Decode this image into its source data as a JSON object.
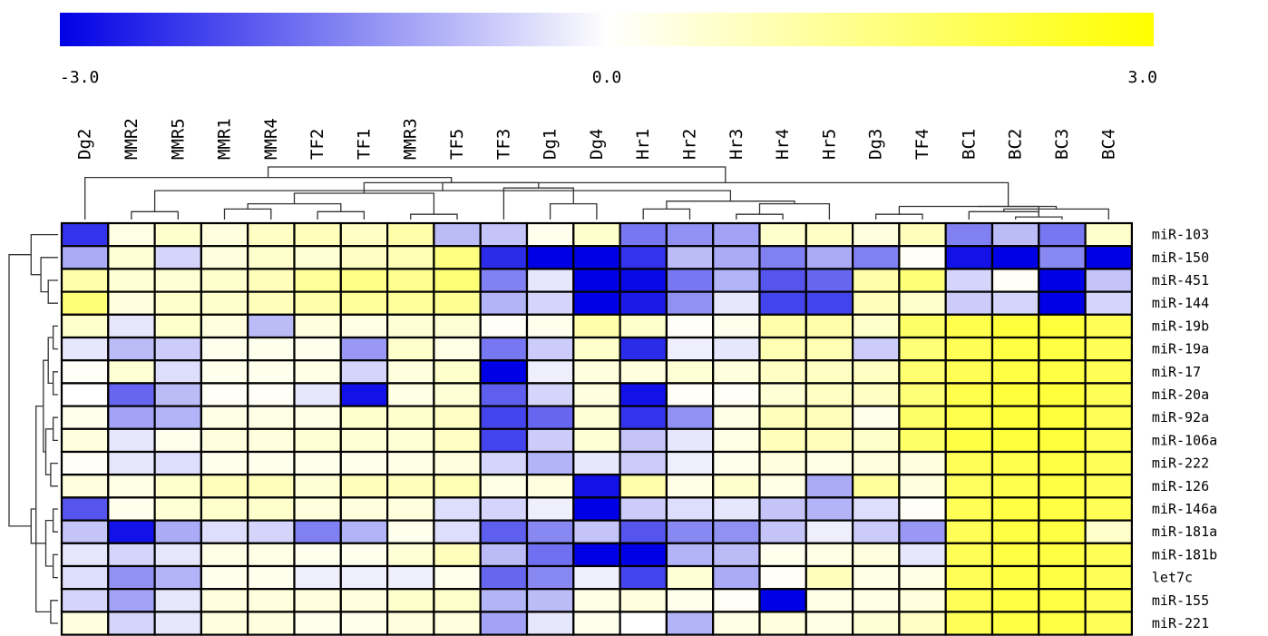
{
  "chart_data": {
    "type": "heatmap",
    "color_scale": {
      "min": -3.0,
      "mid": 0.0,
      "max": 3.0,
      "min_label": "-3.0",
      "mid_label": "0.0",
      "max_label": "3.0",
      "low_color": "#0000e6",
      "mid_color": "#ffffff",
      "high_color": "#ffff00"
    },
    "columns": [
      "Dg2",
      "MMR2",
      "MMR5",
      "MMR1",
      "MMR4",
      "TF2",
      "TF1",
      "MMR3",
      "TF5",
      "TF3",
      "Dg1",
      "Dg4",
      "Hr1",
      "Hr2",
      "Hr3",
      "Hr4",
      "Hr5",
      "Dg3",
      "TF4",
      "BC1",
      "BC2",
      "BC3",
      "BC4"
    ],
    "rows": [
      "miR-103",
      "miR-150",
      "miR-451",
      "miR-144",
      "miR-19b",
      "miR-19a",
      "miR-17",
      "miR-20a",
      "miR-92a",
      "miR-106a",
      "miR-222",
      "miR-126",
      "miR-146a",
      "miR-181a",
      "miR-181b",
      "let7c",
      "miR-155",
      "miR-221"
    ],
    "values": [
      [
        -2.4,
        0.3,
        0.6,
        0.4,
        0.7,
        0.8,
        0.7,
        1.0,
        -0.8,
        -0.7,
        0.2,
        0.6,
        -1.6,
        -1.3,
        -1.1,
        0.6,
        0.7,
        0.4,
        0.8,
        -1.5,
        -0.8,
        -1.6,
        0.6
      ],
      [
        -1.0,
        0.5,
        -0.5,
        0.4,
        0.6,
        0.5,
        0.7,
        0.9,
        1.5,
        -2.5,
        -3.0,
        -3.0,
        -2.4,
        -0.8,
        -1.0,
        -1.5,
        -1.0,
        -1.5,
        0.1,
        -2.8,
        -3.0,
        -1.4,
        -3.0
      ],
      [
        1.0,
        0.5,
        0.5,
        0.6,
        0.8,
        1.2,
        1.4,
        1.3,
        1.6,
        -1.5,
        -0.3,
        -3.0,
        -2.9,
        -1.6,
        -0.9,
        -2.0,
        -1.8,
        1.0,
        1.6,
        -0.5,
        0.1,
        -3.0,
        -0.7
      ],
      [
        1.6,
        0.4,
        0.6,
        0.6,
        0.8,
        1.0,
        1.2,
        1.2,
        1.3,
        -0.9,
        -0.5,
        -3.0,
        -2.7,
        -1.3,
        -0.3,
        -2.2,
        -2.2,
        0.8,
        0.6,
        -0.6,
        -0.5,
        -3.0,
        -0.5
      ],
      [
        0.6,
        -0.3,
        0.6,
        0.4,
        -0.8,
        0.4,
        0.3,
        0.5,
        0.5,
        0.1,
        0.2,
        1.0,
        0.6,
        0.1,
        0.2,
        1.0,
        1.0,
        0.6,
        1.8,
        2.1,
        2.3,
        2.3,
        2.0
      ],
      [
        -0.3,
        -0.8,
        -0.6,
        0.2,
        0.2,
        0.2,
        -1.2,
        0.6,
        0.3,
        -1.6,
        -0.6,
        0.6,
        -2.5,
        -0.2,
        -0.3,
        0.9,
        0.9,
        -0.6,
        1.6,
        2.0,
        2.2,
        2.2,
        2.0
      ],
      [
        0.1,
        0.5,
        -0.4,
        0.2,
        0.2,
        0.3,
        -0.5,
        0.4,
        0.6,
        -3.0,
        -0.2,
        0.4,
        0.4,
        0.5,
        0.4,
        0.7,
        0.7,
        0.7,
        1.7,
        2.0,
        2.2,
        2.2,
        2.0
      ],
      [
        0.0,
        -1.8,
        -0.8,
        0.1,
        0.1,
        -0.3,
        -2.8,
        0.3,
        0.5,
        -1.9,
        -0.5,
        0.4,
        -2.8,
        0.1,
        0.1,
        0.5,
        0.7,
        0.7,
        1.6,
        2.1,
        2.3,
        2.3,
        2.0
      ],
      [
        0.2,
        -1.1,
        -0.9,
        0.3,
        0.3,
        0.3,
        0.6,
        0.6,
        0.7,
        -2.2,
        -1.8,
        0.5,
        -2.4,
        -1.3,
        0.3,
        0.8,
        0.8,
        0.2,
        1.8,
        2.1,
        2.3,
        2.3,
        2.0
      ],
      [
        0.4,
        -0.3,
        0.2,
        0.4,
        0.4,
        0.5,
        0.5,
        0.5,
        0.7,
        -2.2,
        -0.6,
        0.5,
        -0.7,
        -0.3,
        0.3,
        0.8,
        0.8,
        0.6,
        1.8,
        2.2,
        2.3,
        2.3,
        2.0
      ],
      [
        0.1,
        -0.3,
        -0.4,
        0.2,
        0.2,
        0.2,
        0.2,
        0.3,
        0.4,
        -0.5,
        -0.9,
        -0.3,
        -0.6,
        -0.2,
        0.2,
        0.4,
        0.3,
        0.4,
        0.4,
        2.0,
        2.1,
        2.2,
        2.0
      ],
      [
        0.4,
        0.3,
        0.6,
        0.8,
        0.8,
        0.5,
        0.8,
        0.8,
        0.9,
        0.3,
        0.4,
        -2.8,
        1.0,
        0.3,
        0.6,
        0.3,
        -1.0,
        1.2,
        0.4,
        1.9,
        2.1,
        2.2,
        2.0
      ],
      [
        -2.0,
        0.2,
        0.5,
        0.6,
        0.6,
        0.4,
        0.4,
        0.4,
        -0.4,
        -0.5,
        -0.2,
        -3.0,
        -0.6,
        -0.4,
        -0.3,
        -0.7,
        -0.9,
        -0.4,
        0.1,
        2.0,
        2.2,
        2.2,
        2.0
      ],
      [
        -0.7,
        -2.8,
        -1.0,
        -0.4,
        -0.5,
        -1.5,
        -0.9,
        0.2,
        -0.4,
        -1.9,
        -1.4,
        -0.7,
        -2.0,
        -1.4,
        -1.3,
        -0.7,
        -0.2,
        -0.6,
        -1.2,
        2.0,
        2.2,
        2.2,
        0.6
      ],
      [
        -0.3,
        -0.5,
        -0.3,
        0.3,
        0.3,
        0.2,
        0.2,
        0.5,
        0.8,
        -0.8,
        -1.7,
        -3.0,
        -3.0,
        -0.9,
        -0.8,
        0.2,
        0.3,
        0.4,
        -0.3,
        2.0,
        2.2,
        2.2,
        2.0
      ],
      [
        -0.4,
        -1.3,
        -0.9,
        0.2,
        0.2,
        -0.2,
        -0.2,
        -0.2,
        0.2,
        -1.8,
        -1.4,
        -0.2,
        -2.2,
        0.5,
        -1.0,
        0.1,
        0.8,
        0.3,
        0.3,
        2.0,
        2.2,
        2.2,
        2.0
      ],
      [
        -0.5,
        -1.1,
        -0.3,
        0.4,
        0.4,
        0.4,
        0.4,
        0.6,
        0.6,
        -0.9,
        -0.8,
        0.3,
        0.4,
        0.2,
        0.1,
        -3.0,
        0.3,
        0.3,
        0.4,
        2.0,
        2.2,
        2.2,
        2.0
      ],
      [
        0.4,
        -0.5,
        -0.3,
        0.4,
        0.4,
        0.2,
        0.2,
        0.4,
        0.4,
        -1.1,
        -0.3,
        0.2,
        0.0,
        -0.9,
        0.3,
        0.4,
        0.3,
        0.5,
        0.7,
        2.0,
        2.2,
        2.2,
        2.0
      ]
    ],
    "column_dendrogram": [
      [
        17,
        18,
        0.1
      ],
      [
        20,
        21,
        0.05
      ],
      [
        19,
        24,
        0.15
      ],
      [
        22,
        25,
        0.2
      ],
      [
        23,
        26,
        0.25
      ],
      [
        27,
        24,
        0.25
      ],
      [
        10,
        11,
        0.3
      ],
      [
        12,
        13,
        0.2
      ],
      [
        14,
        15,
        0.1
      ],
      [
        1,
        2,
        0.15
      ],
      [
        3,
        4,
        0.2
      ],
      [
        5,
        6,
        0.15
      ],
      [
        7,
        8,
        0.1
      ],
      [
        9,
        29,
        0.6
      ],
      [
        16,
        31,
        0.3
      ],
      [
        30,
        37,
        0.35
      ],
      [
        32,
        38,
        0.55
      ],
      [
        33,
        34,
        0.3
      ],
      [
        35,
        40,
        0.5
      ],
      [
        36,
        41,
        0.7
      ],
      [
        0,
        42,
        0.8
      ],
      [
        39,
        28,
        0.7
      ],
      [
        43,
        44,
        1.0
      ]
    ],
    "row_dendrogram": [
      [
        2,
        3,
        0.2
      ],
      [
        1,
        18,
        0.35
      ],
      [
        0,
        19,
        0.55
      ],
      [
        4,
        5,
        0.1
      ],
      [
        6,
        7,
        0.1
      ],
      [
        8,
        9,
        0.1
      ],
      [
        10,
        11,
        0.15
      ],
      [
        12,
        13,
        0.1
      ],
      [
        14,
        15,
        0.1
      ],
      [
        16,
        17,
        0.15
      ],
      [
        21,
        22,
        0.2
      ],
      [
        23,
        24,
        0.25
      ],
      [
        25,
        26,
        0.25
      ],
      [
        28,
        29,
        0.3
      ],
      [
        27,
        31,
        0.45
      ],
      [
        30,
        32,
        0.55
      ],
      [
        20,
        33,
        1.0
      ]
    ]
  }
}
